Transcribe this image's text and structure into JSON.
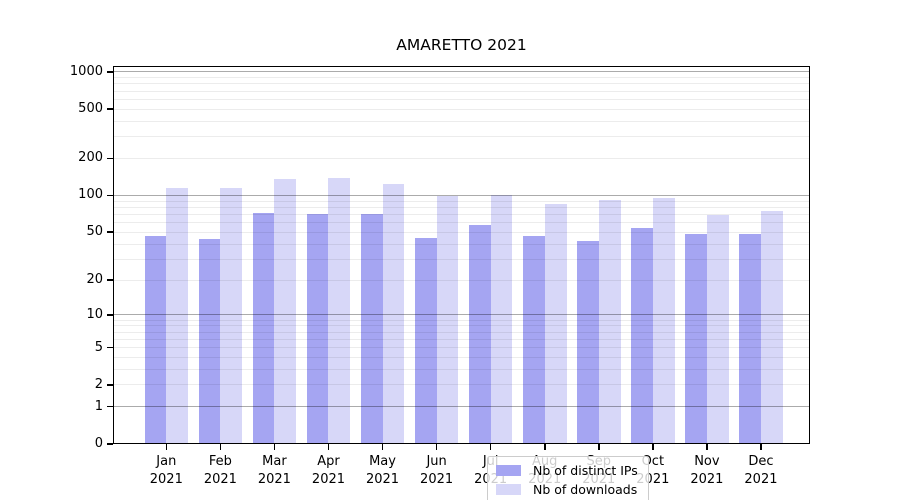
{
  "title": "AMARETTO 2021",
  "chart_data": {
    "type": "bar",
    "title": "AMARETTO 2021",
    "y_scale": "log1p",
    "ylim": [
      0,
      1116
    ],
    "grid": true,
    "legend_position": "lower-center-inside",
    "year_label": "2021",
    "categories": [
      "Jan",
      "Feb",
      "Mar",
      "Apr",
      "May",
      "Jun",
      "Jul",
      "Aug",
      "Sep",
      "Oct",
      "Nov",
      "Dec"
    ],
    "series": [
      {
        "name": "Nb of distinct IPs",
        "color": "#a5a5f2",
        "values": [
          47,
          44,
          72,
          70,
          70,
          45,
          57,
          47,
          42,
          54,
          48,
          48
        ]
      },
      {
        "name": "Nb of downloads",
        "color": "#d7d7f8",
        "values": [
          115,
          114,
          137,
          138,
          125,
          99,
          100,
          85,
          91,
          96,
          69,
          75
        ]
      }
    ],
    "y_ticks": [
      0,
      1,
      2,
      5,
      10,
      20,
      50,
      100,
      200,
      500,
      1000
    ],
    "major_gridlines": [
      1,
      10,
      100,
      1000
    ],
    "minor_gridlines": [
      2,
      3,
      4,
      5,
      6,
      7,
      8,
      9,
      20,
      30,
      40,
      50,
      60,
      70,
      80,
      90,
      200,
      300,
      400,
      500,
      600,
      700,
      800,
      900
    ]
  },
  "legend": {
    "items": [
      {
        "label": "Nb of distinct IPs",
        "color": "#a5a5f2"
      },
      {
        "label": "Nb of downloads",
        "color": "#d7d7f8"
      }
    ]
  }
}
